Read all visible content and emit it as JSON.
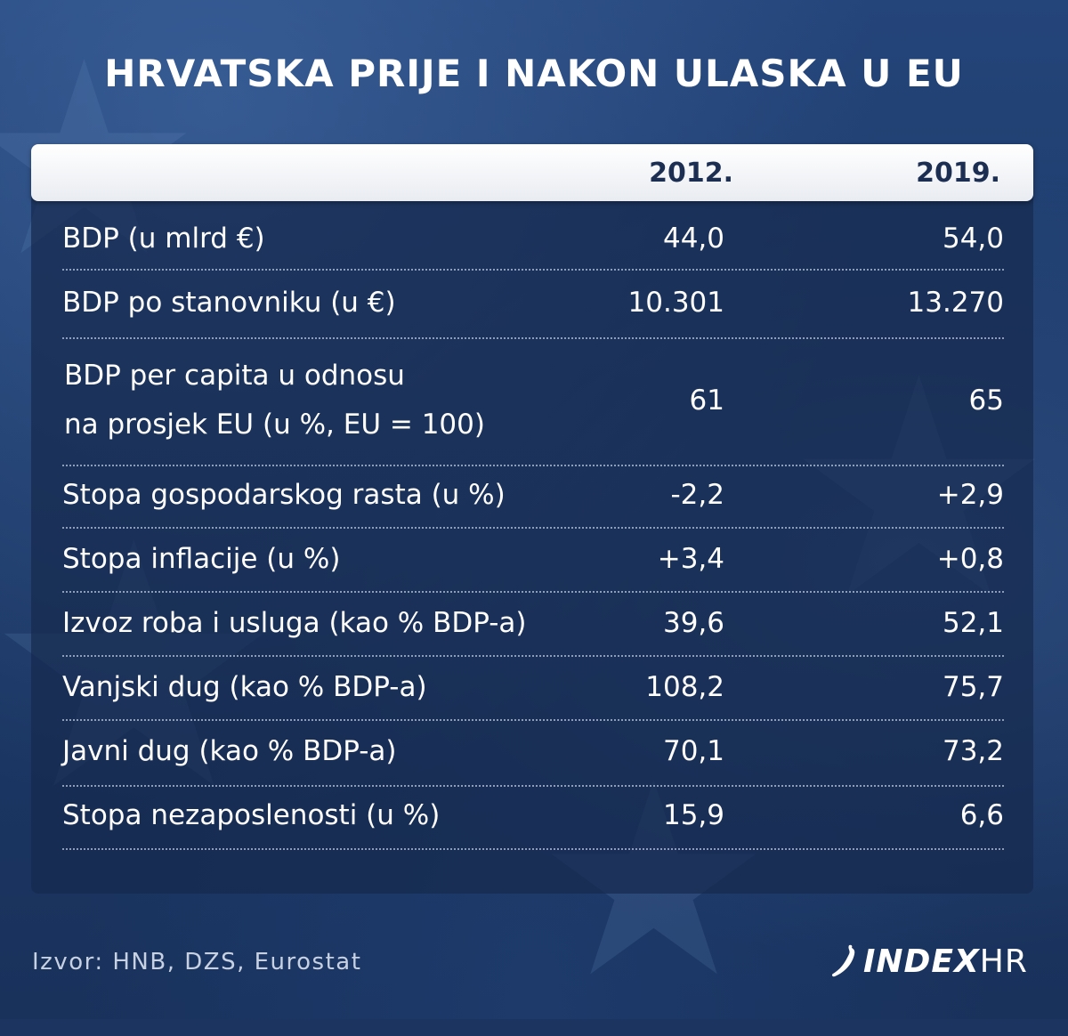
{
  "title": "HRVATSKA PRIJE I NAKON ULASKA U EU",
  "chart_data": {
    "type": "table",
    "columns": [
      "2012.",
      "2019."
    ],
    "rows": [
      {
        "label": "BDP (u mlrd €)",
        "v2012": "44,0",
        "v2019": "54,0"
      },
      {
        "label": "BDP po stanovniku (u €)",
        "v2012": "10.301",
        "v2019": "13.270"
      },
      {
        "label_line1": "BDP per capita u odnosu",
        "label_line2": "na prosjek EU (u %, EU = 100)",
        "v2012": "61",
        "v2019": "65"
      },
      {
        "label": "Stopa gospodarskog rasta (u %)",
        "v2012": "-2,2",
        "v2019": "+2,9"
      },
      {
        "label": "Stopa inflacije (u %)",
        "v2012": "+3,4",
        "v2019": "+0,8"
      },
      {
        "label": "Izvoz roba i usluga (kao % BDP-a)",
        "v2012": "39,6",
        "v2019": "52,1"
      },
      {
        "label": "Vanjski dug (kao % BDP-a)",
        "v2012": "108,2",
        "v2019": "75,7"
      },
      {
        "label": "Javni dug (kao % BDP-a)",
        "v2012": "70,1",
        "v2019": "73,2"
      },
      {
        "label": "Stopa nezaposlenosti (u %)",
        "v2012": "15,9",
        "v2019": "6,6"
      }
    ]
  },
  "source": "Izvor: HNB, DZS, Eurostat",
  "logo": {
    "name_bold": "INDEX",
    "name_light": "HR",
    "icon": "chili-pepper-icon"
  },
  "colors": {
    "background": "#1b3560",
    "header_text": "#1c2e52",
    "text": "#ffffff"
  }
}
